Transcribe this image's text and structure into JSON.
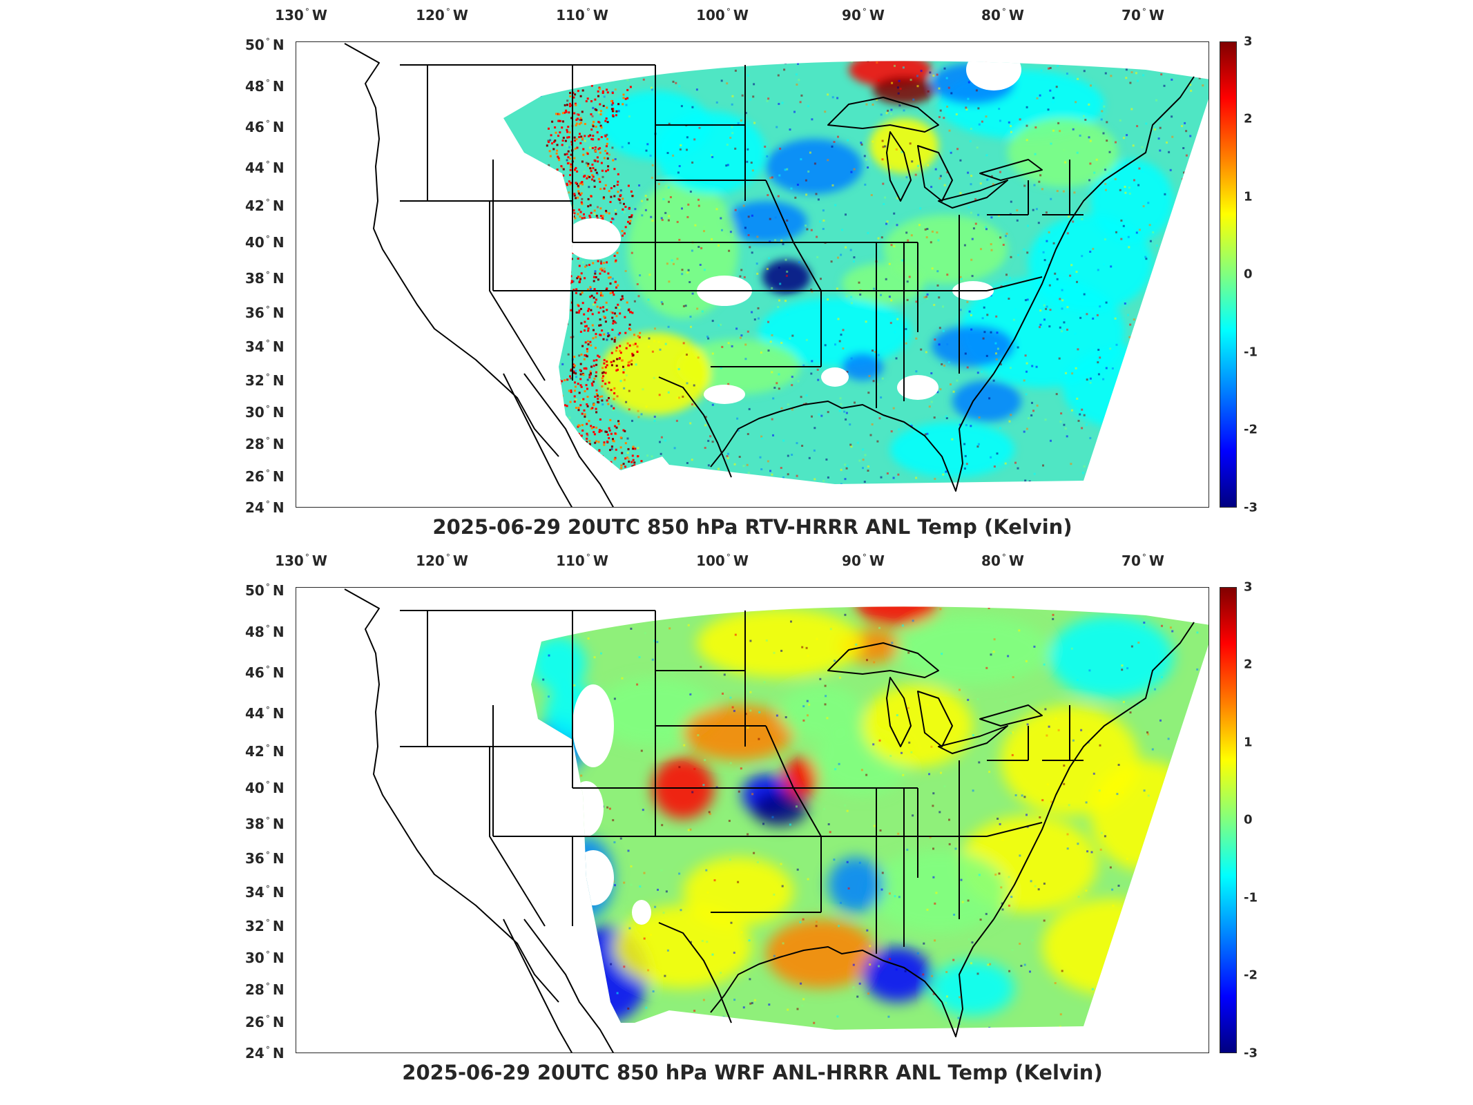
{
  "colors": {
    "frame": "#262626",
    "outline": "#000000",
    "colormap": [
      "#000080",
      "#0000ff",
      "#0080ff",
      "#00ffff",
      "#80ff80",
      "#ffff00",
      "#ff8000",
      "#ff0000",
      "#800000"
    ]
  },
  "axes": {
    "lon_ticks": [
      {
        "value": "130",
        "hem": "W"
      },
      {
        "value": "120",
        "hem": "W"
      },
      {
        "value": "110",
        "hem": "W"
      },
      {
        "value": "100",
        "hem": "W"
      },
      {
        "value": "90",
        "hem": "W"
      },
      {
        "value": "80",
        "hem": "W"
      },
      {
        "value": "70",
        "hem": "W"
      }
    ],
    "lat_ticks": [
      {
        "value": "50",
        "hem": "N"
      },
      {
        "value": "48",
        "hem": "N"
      },
      {
        "value": "46",
        "hem": "N"
      },
      {
        "value": "44",
        "hem": "N"
      },
      {
        "value": "42",
        "hem": "N"
      },
      {
        "value": "40",
        "hem": "N"
      },
      {
        "value": "38",
        "hem": "N"
      },
      {
        "value": "36",
        "hem": "N"
      },
      {
        "value": "34",
        "hem": "N"
      },
      {
        "value": "32",
        "hem": "N"
      },
      {
        "value": "30",
        "hem": "N"
      },
      {
        "value": "28",
        "hem": "N"
      },
      {
        "value": "26",
        "hem": "N"
      },
      {
        "value": "24",
        "hem": "N"
      }
    ],
    "colorbar_ticks": [
      "3",
      "2",
      "1",
      "0",
      "-1",
      "-2",
      "-3"
    ],
    "colorbar_range": [
      -3,
      3
    ]
  },
  "panels": [
    {
      "title": "2025-06-29 20UTC 850 hPa RTV-HRRR ANL Temp (Kelvin)",
      "variant": "rtv"
    },
    {
      "title": "2025-06-29 20UTC 850 hPa WRF ANL-HRRR ANL Temp (Kelvin)",
      "variant": "wrf"
    }
  ]
}
